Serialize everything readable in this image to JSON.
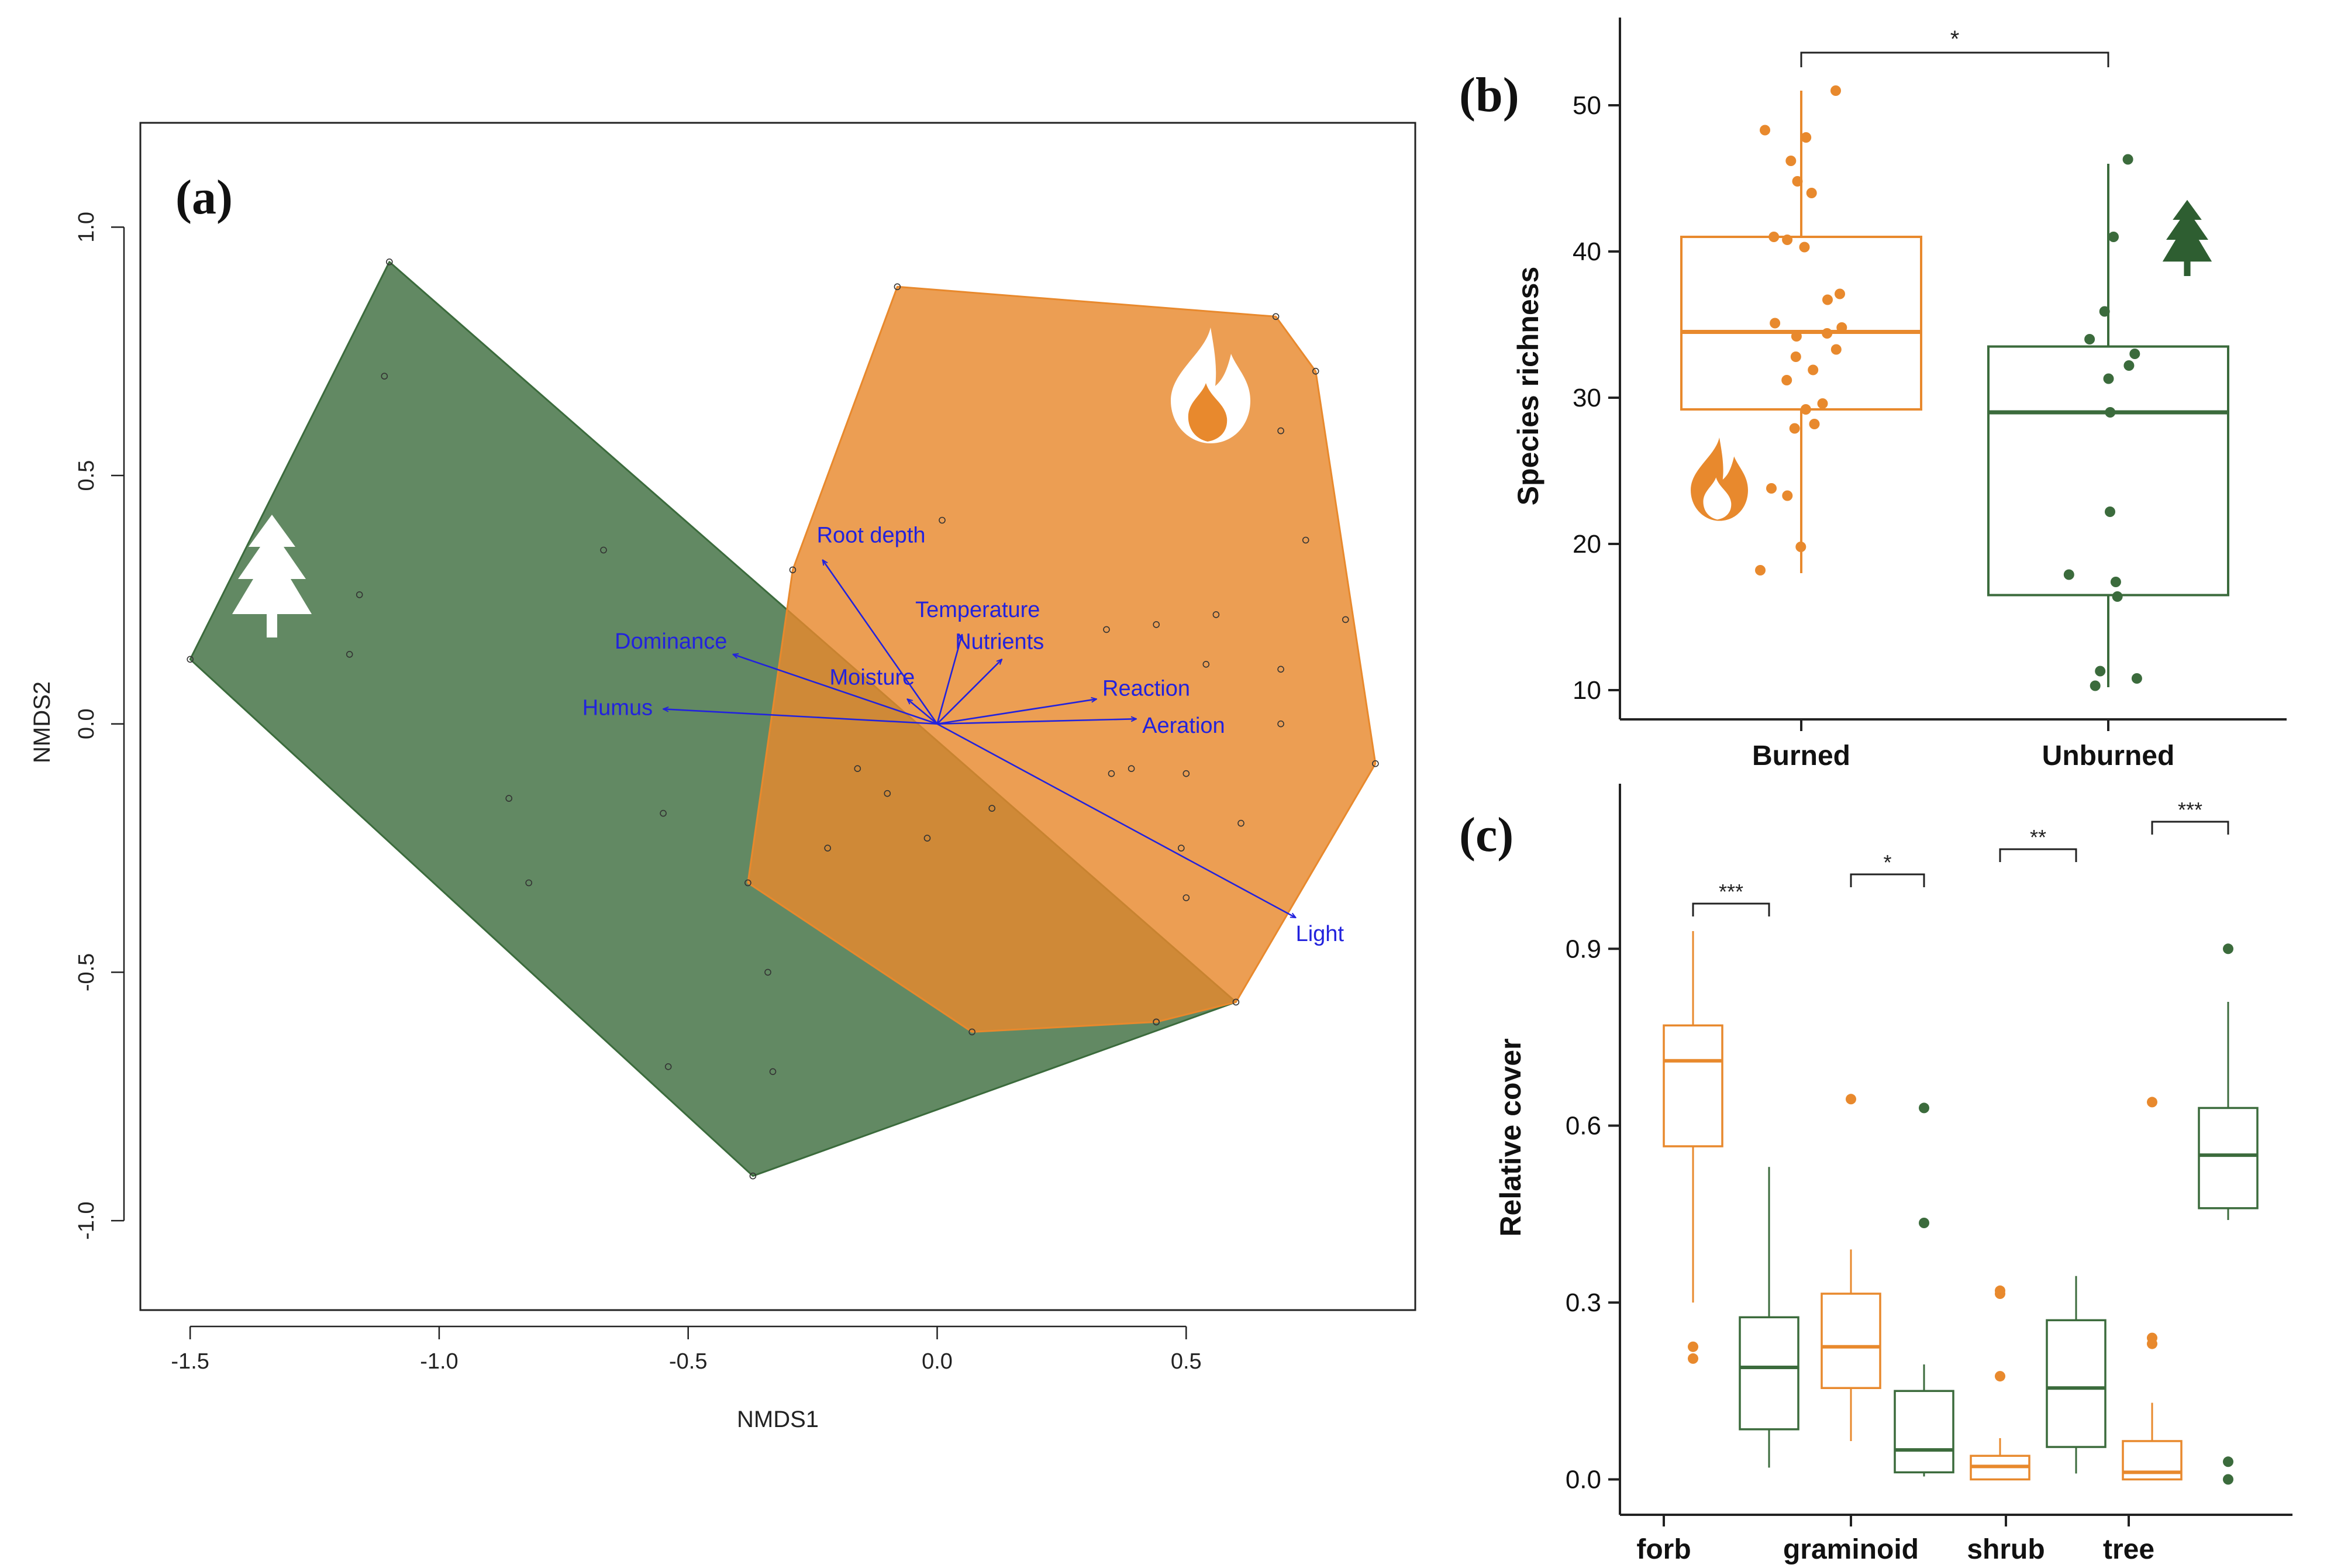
{
  "chart_data": [
    {
      "panel": "(a)",
      "type": "scatter",
      "xlabel": "NMDS1",
      "ylabel": "NMDS2",
      "xlim": [
        -1.6,
        0.96
      ],
      "ylim": [
        -1.18,
        1.21
      ],
      "xticks": [
        -1.5,
        -1.0,
        -0.5,
        0.0,
        0.5
      ],
      "xtick_labels": [
        "-1.5",
        "-1.0",
        "-0.5",
        "0.0",
        "0.5"
      ],
      "yticks": [
        -1.0,
        -0.5,
        0.0,
        0.5,
        1.0
      ],
      "ytick_labels": [
        "-1.0",
        "-0.5",
        "0.0",
        "0.5",
        "1.0"
      ],
      "groups": [
        {
          "name": "Unburned",
          "icon": "tree-icon",
          "fill": "#3b6b3c",
          "hull": [
            [
              -1.1,
              0.93
            ],
            [
              -0.37,
              0.29
            ],
            [
              0.6,
              -0.56
            ],
            [
              -0.37,
              -0.91
            ],
            [
              -1.5,
              0.13
            ]
          ],
          "points": [
            [
              -1.1,
              0.93
            ],
            [
              -1.11,
              0.7
            ],
            [
              -1.16,
              0.26
            ],
            [
              -1.18,
              0.14
            ],
            [
              -0.67,
              0.35
            ],
            [
              -0.86,
              -0.15
            ],
            [
              -0.82,
              -0.32
            ],
            [
              -0.55,
              -0.18
            ],
            [
              -0.54,
              -0.69
            ],
            [
              -0.34,
              -0.5
            ],
            [
              -0.33,
              -0.7
            ],
            [
              -0.37,
              -0.91
            ],
            [
              0.44,
              -0.6
            ],
            [
              0.6,
              -0.56
            ],
            [
              -1.5,
              0.13
            ]
          ]
        },
        {
          "name": "Burned",
          "icon": "flame-icon",
          "fill": "#e8892d",
          "hull": [
            [
              -0.08,
              0.88
            ],
            [
              0.68,
              0.82
            ],
            [
              0.76,
              0.71
            ],
            [
              0.88,
              -0.08
            ],
            [
              0.6,
              -0.56
            ],
            [
              0.44,
              -0.6
            ],
            [
              0.07,
              -0.62
            ],
            [
              -0.38,
              -0.32
            ],
            [
              -0.29,
              0.31
            ]
          ],
          "points": [
            [
              -0.08,
              0.88
            ],
            [
              0.68,
              0.82
            ],
            [
              0.76,
              0.71
            ],
            [
              0.69,
              0.59
            ],
            [
              0.74,
              0.37
            ],
            [
              0.82,
              0.21
            ],
            [
              0.69,
              0.11
            ],
            [
              0.69,
              0.0
            ],
            [
              0.88,
              -0.08
            ],
            [
              0.61,
              -0.2
            ],
            [
              0.49,
              -0.25
            ],
            [
              0.5,
              -0.35
            ],
            [
              0.44,
              -0.6
            ],
            [
              0.01,
              0.41
            ],
            [
              0.44,
              0.2
            ],
            [
              0.56,
              0.22
            ],
            [
              0.34,
              0.19
            ],
            [
              0.35,
              -0.1
            ],
            [
              0.39,
              -0.09
            ],
            [
              0.5,
              -0.1
            ],
            [
              0.54,
              0.12
            ],
            [
              -0.16,
              -0.09
            ],
            [
              -0.1,
              -0.14
            ],
            [
              0.11,
              -0.17
            ],
            [
              -0.02,
              -0.23
            ],
            [
              -0.22,
              -0.25
            ],
            [
              0.07,
              -0.62
            ],
            [
              -0.38,
              -0.32
            ],
            [
              -0.29,
              0.31
            ]
          ]
        }
      ],
      "vectors": [
        {
          "label": "Root depth",
          "x": -0.23,
          "y": 0.33
        },
        {
          "label": "Dominance",
          "x": -0.41,
          "y": 0.14
        },
        {
          "label": "Humus",
          "x": -0.55,
          "y": 0.03
        },
        {
          "label": "Temperature",
          "x": 0.05,
          "y": 0.18
        },
        {
          "label": "Nutrients",
          "x": 0.13,
          "y": 0.13
        },
        {
          "label": "Moisture",
          "x": -0.06,
          "y": 0.05
        },
        {
          "label": "Reaction",
          "x": 0.32,
          "y": 0.05
        },
        {
          "label": "Aeration",
          "x": 0.4,
          "y": 0.01
        },
        {
          "label": "Light",
          "x": 0.72,
          "y": -0.39
        }
      ],
      "vector_color": "#2222dd"
    },
    {
      "panel": "(b)",
      "type": "box",
      "ylabel": "Species richness",
      "categories": [
        "Burned",
        "Unburned"
      ],
      "ylim": [
        8,
        56
      ],
      "yticks": [
        10,
        20,
        30,
        40,
        50
      ],
      "ytick_labels": [
        "10",
        "20",
        "30",
        "40",
        "50"
      ],
      "significance": [
        {
          "from": "Burned",
          "to": "Unburned",
          "label": "*"
        }
      ],
      "boxes": [
        {
          "category": "Burned",
          "color": "#e8892d",
          "q1": 29.2,
          "median": 34.5,
          "q3": 41.0,
          "whisker_low": 18.0,
          "whisker_high": 51.0,
          "points": [
            51,
            48.3,
            47.8,
            46.2,
            44.8,
            44.0,
            41.0,
            40.8,
            40.3,
            37.1,
            36.7,
            35.1,
            34.8,
            34.4,
            34.2,
            33.3,
            32.8,
            31.9,
            31.2,
            29.6,
            29.2,
            28.2,
            27.9,
            23.8,
            23.3,
            19.8,
            18.2
          ]
        },
        {
          "category": "Unburned",
          "color": "#3b6b3c",
          "q1": 16.5,
          "median": 29.0,
          "q3": 33.5,
          "whisker_low": 10.2,
          "whisker_high": 46.0,
          "points": [
            46.3,
            41.0,
            35.9,
            34.0,
            33.0,
            32.2,
            31.3,
            29.0,
            22.2,
            17.9,
            17.4,
            16.4,
            11.3,
            10.8,
            10.3
          ]
        }
      ]
    },
    {
      "panel": "(c)",
      "type": "box",
      "ylabel": "Relative cover",
      "categories": [
        "forb",
        "graminoid",
        "shrub",
        "tree"
      ],
      "ylim": [
        -0.06,
        1.18
      ],
      "yticks": [
        0.0,
        0.3,
        0.6,
        0.9
      ],
      "ytick_labels": [
        "0.0",
        "0.3",
        "0.6",
        "0.9"
      ],
      "significance": [
        {
          "category": "forb",
          "label": "***"
        },
        {
          "category": "graminoid",
          "label": "*"
        },
        {
          "category": "shrub",
          "label": "**"
        },
        {
          "category": "tree",
          "label": "***"
        }
      ],
      "boxes": [
        {
          "category": "forb",
          "group": "Burned",
          "color": "#e8892d",
          "q1": 0.565,
          "median": 0.71,
          "q3": 0.77,
          "whisker_low": 0.3,
          "whisker_high": 0.93,
          "outliers": [
            0.225,
            0.205
          ]
        },
        {
          "category": "forb",
          "group": "Unburned",
          "color": "#3b6b3c",
          "q1": 0.085,
          "median": 0.19,
          "q3": 0.275,
          "whisker_low": 0.02,
          "whisker_high": 0.53,
          "outliers": []
        },
        {
          "category": "graminoid",
          "group": "Burned",
          "color": "#e8892d",
          "q1": 0.155,
          "median": 0.225,
          "q3": 0.315,
          "whisker_low": 0.065,
          "whisker_high": 0.39,
          "outliers": [
            0.645
          ]
        },
        {
          "category": "graminoid",
          "group": "Unburned",
          "color": "#3b6b3c",
          "q1": 0.012,
          "median": 0.05,
          "q3": 0.15,
          "whisker_low": 0.005,
          "whisker_high": 0.195,
          "outliers": [
            0.63,
            0.435
          ]
        },
        {
          "category": "shrub",
          "group": "Burned",
          "color": "#e8892d",
          "q1": 0.0,
          "median": 0.022,
          "q3": 0.04,
          "whisker_low": 0.0,
          "whisker_high": 0.07,
          "outliers": [
            0.32,
            0.315,
            0.175
          ]
        },
        {
          "category": "shrub",
          "group": "Unburned",
          "color": "#3b6b3c",
          "q1": 0.055,
          "median": 0.155,
          "q3": 0.27,
          "whisker_low": 0.01,
          "whisker_high": 0.345,
          "outliers": []
        },
        {
          "category": "tree",
          "group": "Burned",
          "color": "#e8892d",
          "q1": 0.0,
          "median": 0.012,
          "q3": 0.065,
          "whisker_low": 0.0,
          "whisker_high": 0.13,
          "outliers": [
            0.64,
            0.24,
            0.23
          ]
        },
        {
          "category": "tree",
          "group": "Unburned",
          "color": "#3b6b3c",
          "q1": 0.46,
          "median": 0.55,
          "q3": 0.63,
          "whisker_low": 0.44,
          "whisker_high": 0.81,
          "outliers": [
            0.9,
            0.03,
            0.0
          ]
        }
      ]
    }
  ]
}
